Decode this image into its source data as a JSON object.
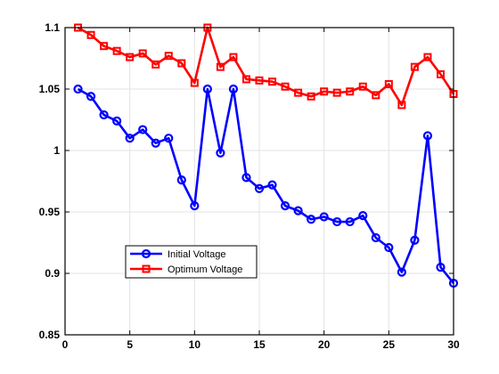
{
  "chart_data": {
    "type": "line",
    "title": "",
    "xlabel": "",
    "ylabel": "",
    "xlim": [
      0,
      30
    ],
    "ylim": [
      0.85,
      1.1
    ],
    "xticks": [
      0,
      5,
      10,
      15,
      20,
      25,
      30
    ],
    "xtick_labels": [
      "0",
      "5",
      "10",
      "15",
      "20",
      "25",
      "30"
    ],
    "yticks": [
      0.85,
      0.9,
      0.95,
      1.0,
      1.05,
      1.1
    ],
    "ytick_labels": [
      "0.85",
      "0.9",
      "0.95",
      "1",
      "1.05",
      "1.1"
    ],
    "grid": true,
    "legend_position": "lower-left",
    "x": [
      1,
      2,
      3,
      4,
      5,
      6,
      7,
      8,
      9,
      10,
      11,
      12,
      13,
      14,
      15,
      16,
      17,
      18,
      19,
      20,
      21,
      22,
      23,
      24,
      25,
      26,
      27,
      28,
      29,
      30
    ],
    "series": [
      {
        "name": "Initial Voltage",
        "color": "#0000ff",
        "marker": "circle",
        "values": [
          1.05,
          1.044,
          1.029,
          1.024,
          1.01,
          1.017,
          1.006,
          1.01,
          0.976,
          0.955,
          1.05,
          0.998,
          1.05,
          0.978,
          0.969,
          0.972,
          0.955,
          0.951,
          0.944,
          0.946,
          0.942,
          0.942,
          0.947,
          0.929,
          0.921,
          0.901,
          0.927,
          1.012,
          0.905,
          0.892
        ]
      },
      {
        "name": "Optimum Voltage",
        "color": "#ff0000",
        "marker": "square",
        "values": [
          1.1,
          1.094,
          1.085,
          1.081,
          1.076,
          1.079,
          1.07,
          1.077,
          1.071,
          1.055,
          1.1,
          1.068,
          1.076,
          1.058,
          1.057,
          1.056,
          1.052,
          1.047,
          1.044,
          1.048,
          1.047,
          1.048,
          1.052,
          1.045,
          1.054,
          1.037,
          1.068,
          1.076,
          1.062,
          1.046
        ]
      }
    ]
  }
}
